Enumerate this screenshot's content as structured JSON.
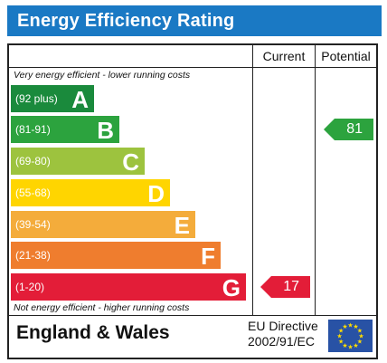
{
  "header": {
    "title": "Energy Efficiency Rating"
  },
  "columns": {
    "current": "Current",
    "potential": "Potential"
  },
  "notes": {
    "top": "Very energy efficient - lower running costs",
    "bottom": "Not energy efficient - higher running costs"
  },
  "bands": [
    {
      "range": "(92 plus)",
      "letter": "A",
      "color": "#1a8a3c"
    },
    {
      "range": "(81-91)",
      "letter": "B",
      "color": "#2ca33e"
    },
    {
      "range": "(69-80)",
      "letter": "C",
      "color": "#9dc33e"
    },
    {
      "range": "(55-68)",
      "letter": "D",
      "color": "#ffd500"
    },
    {
      "range": "(39-54)",
      "letter": "E",
      "color": "#f4ac3b"
    },
    {
      "range": "(21-38)",
      "letter": "F",
      "color": "#ef7d2e"
    },
    {
      "range": "(1-20)",
      "letter": "G",
      "color": "#e31d38"
    }
  ],
  "ratings": {
    "current": {
      "value": "17",
      "band": "G",
      "color": "#e31d38"
    },
    "potential": {
      "value": "81",
      "band": "B",
      "color": "#2ca33e"
    }
  },
  "footer": {
    "country": "England & Wales",
    "directive_line1": "EU Directive",
    "directive_line2": "2002/91/EC",
    "flag_icon": "eu-flag-icon"
  }
}
